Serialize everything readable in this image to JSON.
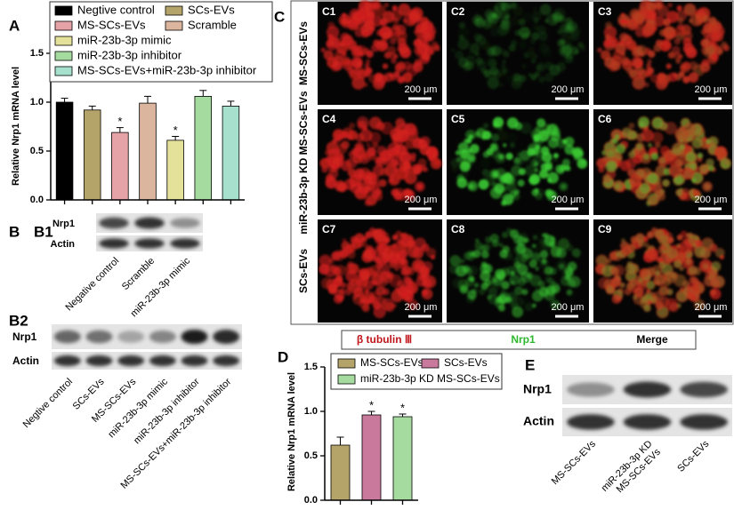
{
  "chart_data": [
    {
      "type": "bar",
      "ylabel": "Relative Nrp1 mRNA level",
      "ylim": [
        0,
        1.5
      ],
      "yticks": [
        {
          "value": 0,
          "label": "0.0"
        },
        {
          "value": 0.5,
          "label": "0.5"
        },
        {
          "value": 1,
          "label": "1.0"
        },
        {
          "value": 1.5,
          "label": "1.5"
        }
      ],
      "series": [
        {
          "name": "Negtive control",
          "color": "#000000",
          "values": [
            1.0
          ],
          "errors": [
            0.04
          ]
        },
        {
          "name": "SCs-EVs",
          "color": "#b5a46a",
          "values": [
            0.92
          ],
          "errors": [
            0.04
          ]
        },
        {
          "name": "MS-SCs-EVs",
          "color": "#e5a3a8",
          "values": [
            0.69
          ],
          "errors": [
            0.05
          ],
          "annotation": "*"
        },
        {
          "name": "Scramble",
          "color": "#dbb59d",
          "values": [
            0.99
          ],
          "errors": [
            0.07
          ]
        },
        {
          "name": "miR-23b-3p mimic",
          "color": "#e4e19b",
          "values": [
            0.61
          ],
          "errors": [
            0.04
          ],
          "annotation": "*"
        },
        {
          "name": "miR-23b-3p inhibitor",
          "color": "#a6dba0",
          "values": [
            1.06
          ],
          "errors": [
            0.06
          ]
        },
        {
          "name": "MS-SCs-EVs+miR-23b-3p inhibitor",
          "color": "#a7e1cd",
          "values": [
            0.96
          ],
          "errors": [
            0.05
          ]
        }
      ]
    },
    {
      "type": "bar",
      "ylabel": "Relative Nrp1 mRNA level",
      "ylim": [
        0,
        1.5
      ],
      "yticks": [
        {
          "value": 0,
          "label": "0.0"
        },
        {
          "value": 0.5,
          "label": "0.5"
        },
        {
          "value": 1,
          "label": "1.0"
        },
        {
          "value": 1.5,
          "label": "1.5"
        }
      ],
      "series": [
        {
          "name": "MS-SCs-EVs",
          "color": "#b5a46a",
          "values": [
            0.62
          ],
          "errors": [
            0.09
          ]
        },
        {
          "name": "SCs-EVs",
          "color": "#c97a9c",
          "values": [
            0.96
          ],
          "errors": [
            0.04
          ],
          "annotation": "*"
        },
        {
          "name": "miR-23b-3p KD MS-SCs-EVs",
          "color": "#a6dba0",
          "values": [
            0.94
          ],
          "errors": [
            0.03
          ],
          "annotation": "*"
        }
      ]
    }
  ],
  "panel_labels": [
    "A",
    "B",
    "B1",
    "B2",
    "C",
    "D",
    "E"
  ],
  "blots": {
    "B1": {
      "rows": [
        "Nrp1",
        "Actin"
      ],
      "lanes": [
        "Negative control",
        "Scramble",
        "miR-23b-3p mimic"
      ]
    },
    "B2": {
      "rows": [
        "Nrp1",
        "Actin"
      ],
      "lanes": [
        "Negtive control",
        "SCs-EVs",
        "MS-SCs-EVs",
        "miR-23b-3p mimic",
        "miR-23b-3p inhibitor",
        "MS-SCs-EVs+miR-23b-3p inhibitor"
      ]
    },
    "E": {
      "rows": [
        "Nrp1",
        "Actin"
      ],
      "lanes": [
        "MS-SCs-EVs",
        [
          "miR-23b-3p KD",
          "MS-SCs-EVs"
        ],
        "SCs-EVs"
      ]
    }
  },
  "microscopy": {
    "rows": [
      "MS-SCs-EVs",
      "miR-23b-3p KD MS-SCs-EVs",
      "SCs-EVs"
    ],
    "panels": [
      "C1",
      "C2",
      "C3",
      "C4",
      "C5",
      "C6",
      "C7",
      "C8",
      "C9"
    ],
    "scale_bar": "200 μm",
    "channels": [
      {
        "name": "β tubulin Ⅲ",
        "color": "#c0161c"
      },
      {
        "name": "Nrp1",
        "color": "#2db82d"
      },
      {
        "name": "Merge",
        "color": "#000000"
      }
    ]
  }
}
